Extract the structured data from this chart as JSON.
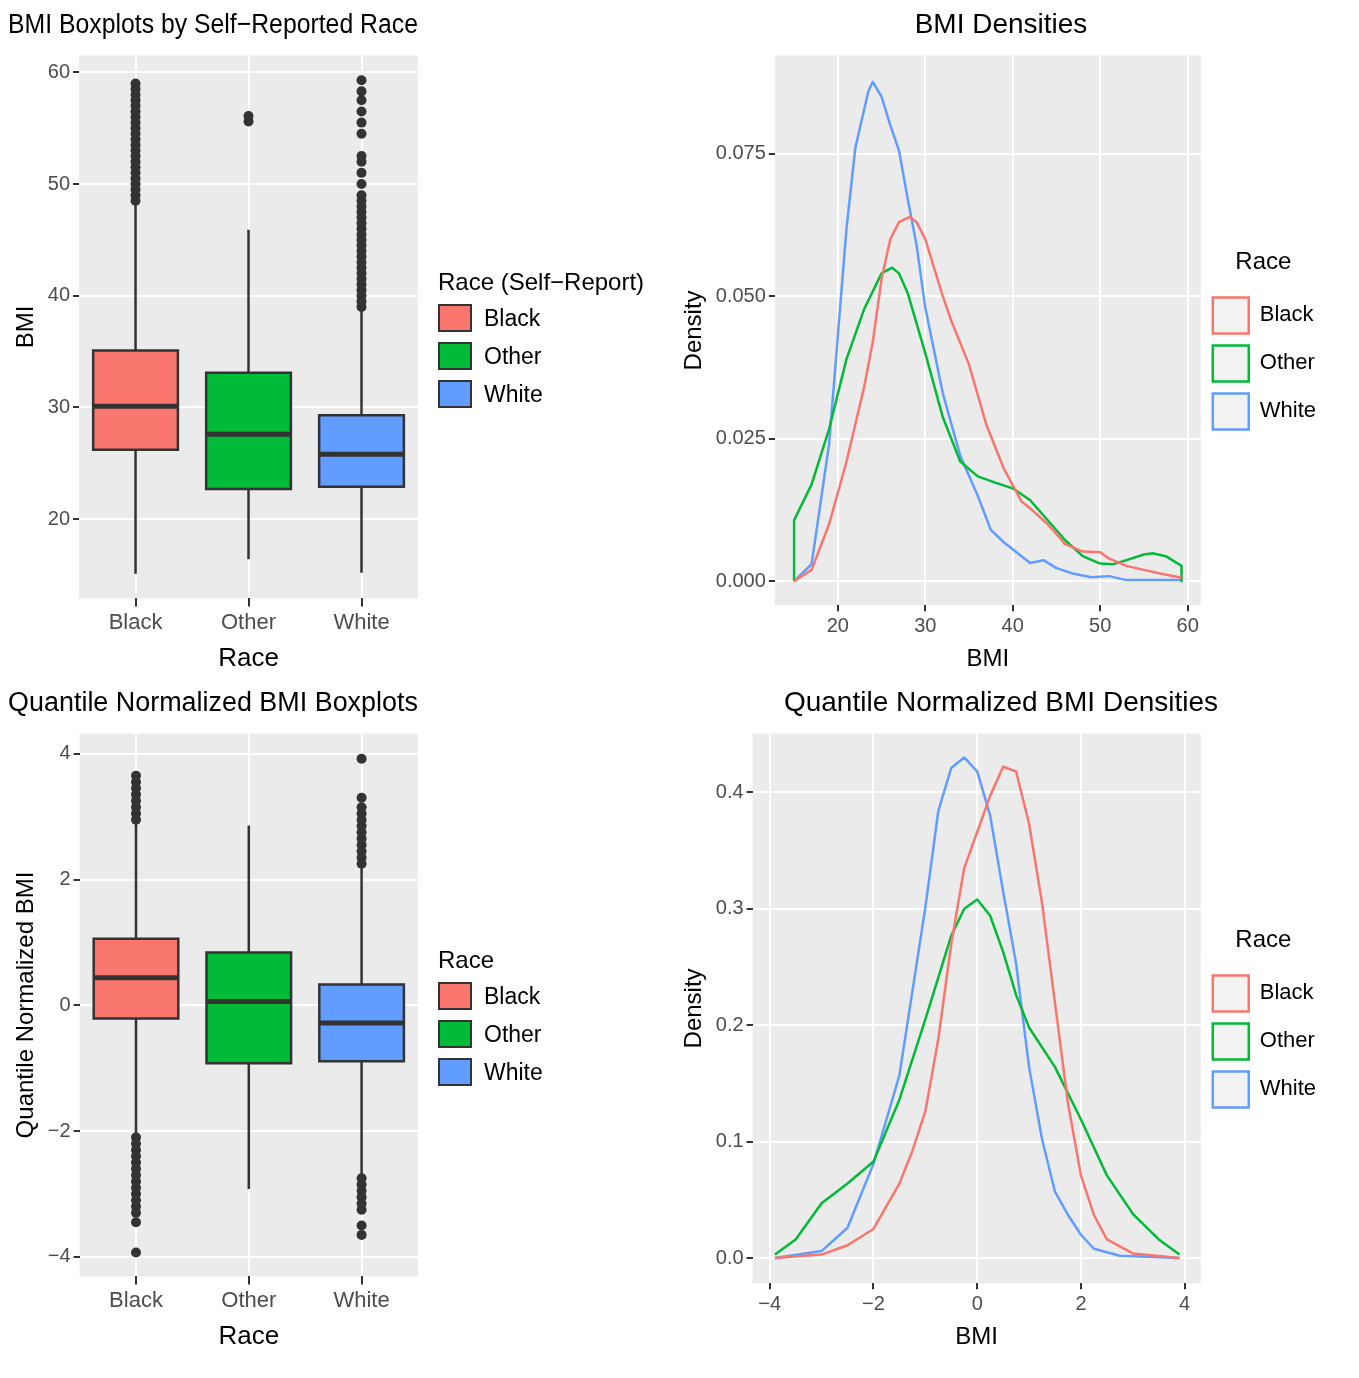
{
  "chart_data": [
    {
      "type": "box",
      "title": "BMI Boxplots by Self−Reported Race",
      "xlabel": "Race",
      "ylabel": "BMI",
      "categories": [
        "Black",
        "Other",
        "White"
      ],
      "legend": "right",
      "legend_title": "Race (Self−Report)",
      "grid": true,
      "ylim": [
        12.9,
        61.5
      ],
      "yticks": [
        20,
        30,
        40,
        50,
        60
      ],
      "series": [
        {
          "name": "Black",
          "color": "#f8766d",
          "boxes": [
            {
              "low": 15.1,
              "q1": 26.2,
              "median": 30.1,
              "q3": 35.1,
              "high": 48.3,
              "outliers": [
                48.5,
                49,
                49.5,
                50,
                50.5,
                51,
                51.5,
                52,
                52.5,
                53,
                53.5,
                54,
                54.5,
                55,
                55.5,
                56,
                56.5,
                57,
                57.5,
                58,
                58.5,
                59
              ]
            },
            null,
            null
          ]
        },
        {
          "name": "Other",
          "color": "#00ba38",
          "boxes": [
            null,
            {
              "low": 16.4,
              "q1": 22.7,
              "median": 27.6,
              "q3": 33.1,
              "high": 45.9,
              "outliers": [
                55.6,
                56.1
              ]
            },
            null
          ]
        },
        {
          "name": "White",
          "color": "#619cff",
          "boxes": [
            null,
            null,
            {
              "low": 15.2,
              "q1": 22.9,
              "median": 25.8,
              "q3": 29.3,
              "high": 38.7,
              "outliers": [
                39,
                39.5,
                40,
                40.5,
                41,
                41.5,
                42,
                42.5,
                43,
                43.5,
                44,
                44.5,
                45,
                45.5,
                46,
                46.5,
                47,
                47.5,
                48,
                48.5,
                49,
                50,
                51,
                52,
                52.5,
                54.5,
                55.5,
                56.5,
                57.5,
                58.3,
                59.3
              ]
            }
          ]
        }
      ]
    },
    {
      "type": "line",
      "title": "BMI Densities",
      "xlabel": "BMI",
      "ylabel": "Density",
      "legend": "right",
      "legend_title": "Race",
      "grid": true,
      "xlim": [
        12.8,
        61.5
      ],
      "xticks": [
        20,
        30,
        40,
        50,
        60
      ],
      "ylim": [
        -0.0042,
        0.0922
      ],
      "yticks": [
        {
          "value": 0,
          "label": "0.000"
        },
        0.025,
        {
          "value": 0.05,
          "label": "0.050"
        },
        0.075
      ],
      "series": [
        {
          "name": "Black",
          "color": "#f8766d",
          "x": [
            15,
            17,
            19,
            21,
            23,
            24,
            25,
            26,
            27,
            28.2,
            29,
            30,
            31,
            32,
            33,
            35,
            37,
            39,
            41,
            42,
            44,
            46,
            48,
            50,
            51,
            53,
            55,
            57,
            59.3
          ],
          "values": [
            0,
            0.002,
            0.01,
            0.021,
            0.034,
            0.042,
            0.053,
            0.06,
            0.063,
            0.0639,
            0.063,
            0.06,
            0.055,
            0.05,
            0.0456,
            0.038,
            0.0274,
            0.0197,
            0.014,
            0.0128,
            0.01,
            0.0065,
            0.0052,
            0.0051,
            0.004,
            0.0027,
            0.002,
            0.0013,
            0.0006
          ]
        },
        {
          "name": "Other",
          "color": "#00ba38",
          "x": [
            15,
            15,
            17,
            19,
            21,
            23,
            25,
            26.2,
            27,
            28,
            30,
            32,
            34,
            36,
            38,
            40,
            42,
            44,
            46,
            48,
            50,
            51.5,
            53,
            55,
            56,
            57.5,
            59.3,
            59.3
          ],
          "values": [
            0,
            0.0107,
            0.017,
            0.0267,
            0.039,
            0.0477,
            0.054,
            0.055,
            0.054,
            0.0505,
            0.04,
            0.0288,
            0.021,
            0.0184,
            0.0173,
            0.0163,
            0.0142,
            0.0107,
            0.0072,
            0.0044,
            0.0031,
            0.003,
            0.0037,
            0.0047,
            0.0049,
            0.0044,
            0.0027,
            0
          ]
        },
        {
          "name": "White",
          "color": "#619cff",
          "x": [
            15,
            17,
            19,
            21,
            22,
            23.5,
            24,
            25,
            26,
            27,
            28,
            29,
            30,
            32,
            34,
            36,
            37.5,
            39,
            41,
            42,
            43.5,
            45,
            47,
            49,
            51,
            53,
            59.3
          ],
          "values": [
            0,
            0.003,
            0.024,
            0.062,
            0.076,
            0.086,
            0.0876,
            0.085,
            0.08,
            0.0755,
            0.067,
            0.059,
            0.048,
            0.033,
            0.022,
            0.015,
            0.009,
            0.0068,
            0.0044,
            0.0032,
            0.0037,
            0.0023,
            0.0013,
            0.0007,
            0.0009,
            0.0002,
            0.0002
          ]
        }
      ]
    },
    {
      "type": "box",
      "title": "Quantile Normalized BMI Boxplots",
      "xlabel": "Race",
      "ylabel": "Quantile Normalized BMI",
      "categories": [
        "Black",
        "Other",
        "White"
      ],
      "legend": "right",
      "legend_title": "Race",
      "grid": true,
      "ylim": [
        -4.31,
        4.32
      ],
      "yticks": [
        {
          "value": -4,
          "label": "−4"
        },
        {
          "value": -2,
          "label": "−2"
        },
        0,
        2,
        4
      ],
      "series": [
        {
          "name": "Black",
          "color": "#f8766d",
          "boxes": [
            {
              "low": -2.08,
              "q1": -0.21,
              "median": 0.44,
              "q3": 1.06,
              "high": 2.9,
              "outliers": [
                2.95,
                3.05,
                3.15,
                3.25,
                3.35,
                3.45,
                3.55,
                3.65,
                -2.1,
                -2.2,
                -2.3,
                -2.4,
                -2.5,
                -2.6,
                -2.7,
                -2.8,
                -2.9,
                -3,
                -3.1,
                -3.2,
                -3.3,
                -3.45,
                -3.93
              ]
            },
            null,
            null
          ]
        },
        {
          "name": "Other",
          "color": "#00ba38",
          "boxes": [
            null,
            {
              "low": -2.92,
              "q1": -0.92,
              "median": 0.06,
              "q3": 0.84,
              "high": 2.86
            },
            null
          ]
        },
        {
          "name": "White",
          "color": "#619cff",
          "boxes": [
            null,
            null,
            {
              "low": -2.68,
              "q1": -0.89,
              "median": -0.28,
              "q3": 0.33,
              "high": 2.2,
              "outliers": [
                2.25,
                2.35,
                2.45,
                2.55,
                2.65,
                2.75,
                2.85,
                2.95,
                3.05,
                3.15,
                3.3,
                3.92,
                -2.75,
                -2.85,
                -2.95,
                -3.05,
                -3.15,
                -3.25,
                -3.5,
                -3.65
              ]
            }
          ]
        }
      ]
    },
    {
      "type": "line",
      "title": "Quantile Normalized BMI Densities",
      "xlabel": "BMI",
      "ylabel": "Density",
      "legend": "right",
      "legend_title": "Race",
      "grid": true,
      "xlim": [
        -4.33,
        4.31
      ],
      "xticks": [
        {
          "value": -4,
          "label": "−4"
        },
        {
          "value": -2,
          "label": "−2"
        },
        0,
        2,
        4
      ],
      "ylim": [
        -0.0216,
        0.4505
      ],
      "yticks": [
        {
          "value": 0,
          "label": "0.0"
        },
        0.1,
        0.2,
        0.3,
        0.4
      ],
      "series": [
        {
          "name": "Black",
          "color": "#f8766d",
          "x": [
            -3.9,
            -3,
            -2.5,
            -2,
            -1.5,
            -1.25,
            -1,
            -0.75,
            -0.5,
            -0.25,
            0,
            0.25,
            0.5,
            0.75,
            1,
            1.25,
            1.5,
            1.75,
            2,
            2.25,
            2.5,
            3,
            3.9
          ],
          "values": [
            0,
            0.003,
            0.011,
            0.025,
            0.064,
            0.092,
            0.126,
            0.188,
            0.27,
            0.335,
            0.366,
            0.397,
            0.422,
            0.418,
            0.373,
            0.305,
            0.219,
            0.133,
            0.071,
            0.037,
            0.016,
            0.004,
            0
          ]
        },
        {
          "name": "Other",
          "color": "#00ba38",
          "x": [
            -3.9,
            -3.5,
            -3,
            -2.5,
            -2,
            -1.5,
            -1,
            -0.5,
            -0.25,
            0,
            0.25,
            0.5,
            0.75,
            1,
            1.5,
            2,
            2.5,
            3,
            3.5,
            3.9
          ],
          "values": [
            0.003,
            0.016,
            0.047,
            0.064,
            0.083,
            0.136,
            0.205,
            0.277,
            0.3,
            0.308,
            0.294,
            0.263,
            0.226,
            0.198,
            0.164,
            0.119,
            0.071,
            0.038,
            0.016,
            0.003
          ]
        },
        {
          "name": "White",
          "color": "#619cff",
          "x": [
            -3.9,
            -3,
            -2.5,
            -2,
            -1.5,
            -1,
            -0.75,
            -0.5,
            -0.25,
            0,
            0.25,
            0.5,
            0.75,
            1,
            1.25,
            1.5,
            1.75,
            2,
            2.25,
            2.75,
            3.9
          ],
          "values": [
            0,
            0.006,
            0.026,
            0.081,
            0.157,
            0.301,
            0.384,
            0.421,
            0.43,
            0.418,
            0.38,
            0.315,
            0.253,
            0.164,
            0.102,
            0.057,
            0.037,
            0.02,
            0.008,
            0.002,
            0
          ]
        }
      ]
    }
  ]
}
